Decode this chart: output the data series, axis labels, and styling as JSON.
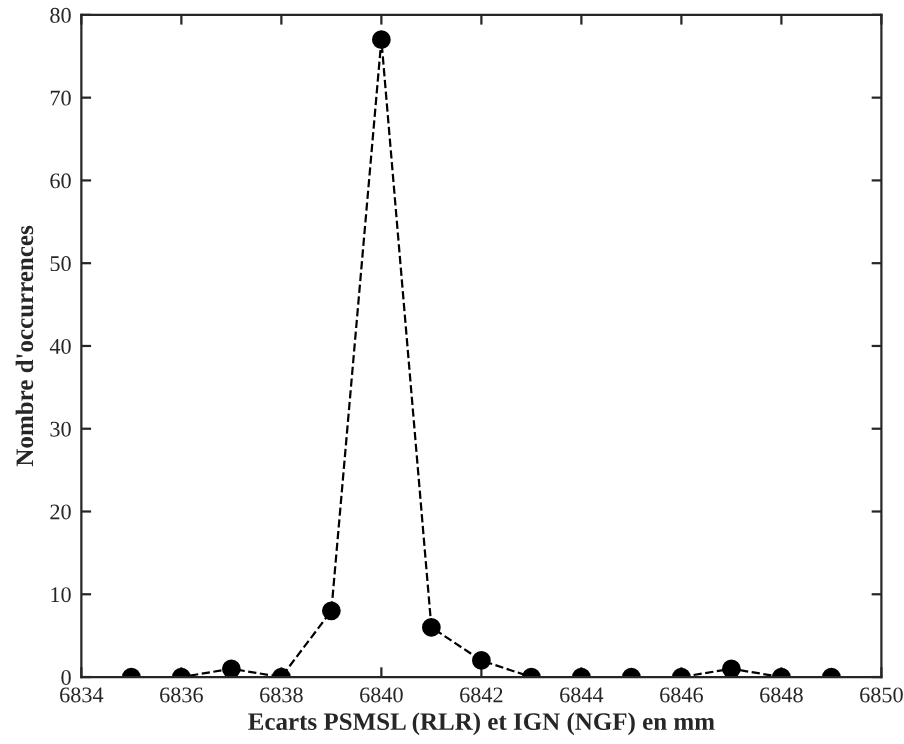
{
  "chart_data": {
    "type": "line",
    "xlabel": "Ecarts PSMSL (RLR) et IGN (NGF) en mm",
    "ylabel": "Nombre d'occurrences",
    "x": [
      6835,
      6836,
      6837,
      6838,
      6839,
      6840,
      6841,
      6842,
      6843,
      6844,
      6845,
      6846,
      6847,
      6848,
      6849
    ],
    "series": [
      {
        "color": "#000000",
        "values": [
          0,
          0,
          1,
          0,
          8,
          77,
          6,
          2,
          0,
          0,
          0,
          0,
          1,
          0,
          0
        ]
      }
    ],
    "xlim": [
      6834,
      6850
    ],
    "xticks": [
      6834,
      6836,
      6838,
      6840,
      6842,
      6844,
      6846,
      6848,
      6850
    ],
    "ylim": [
      0,
      80
    ],
    "yticks": [
      0,
      10,
      20,
      30,
      40,
      50,
      60,
      70,
      80
    ],
    "marker": "circle",
    "line_style": "dashed",
    "grid": false,
    "legend": false
  }
}
